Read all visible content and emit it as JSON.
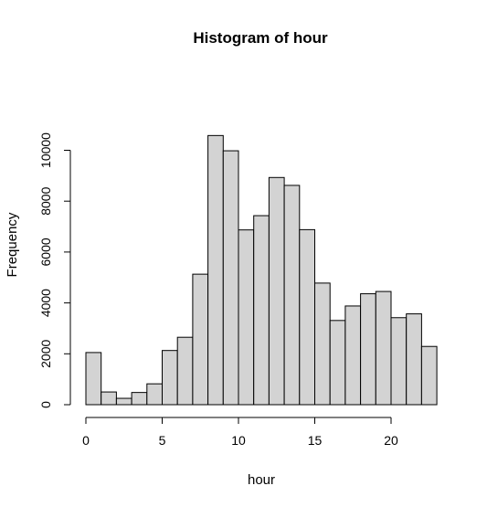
{
  "chart_data": {
    "type": "bar",
    "title": "Histogram of hour",
    "xlabel": "hour",
    "ylabel": "Frequency",
    "bin_edges": [
      0,
      1,
      2,
      3,
      4,
      5,
      6,
      7,
      8,
      9,
      10,
      11,
      12,
      13,
      14,
      15,
      16,
      17,
      18,
      19,
      20,
      21,
      22,
      23
    ],
    "values": [
      2050,
      500,
      250,
      480,
      820,
      2130,
      2650,
      5130,
      10580,
      9980,
      6870,
      7430,
      8930,
      8620,
      6880,
      4780,
      3310,
      3880,
      4360,
      4450,
      3420,
      3570,
      2290
    ],
    "xlim": [
      0,
      23
    ],
    "ylim": [
      0,
      12000
    ],
    "x_ticks": [
      0,
      5,
      10,
      15,
      20
    ],
    "x_tick_labels": [
      "0",
      "5",
      "10",
      "15",
      "20"
    ],
    "y_ticks": [
      0,
      2000,
      4000,
      6000,
      8000,
      10000
    ],
    "y_tick_labels": [
      "0",
      "2000",
      "4000",
      "6000",
      "8000",
      "10000"
    ],
    "bar_fill": "#d3d3d3",
    "bar_stroke": "#000000",
    "grid": false,
    "legend": "none"
  }
}
